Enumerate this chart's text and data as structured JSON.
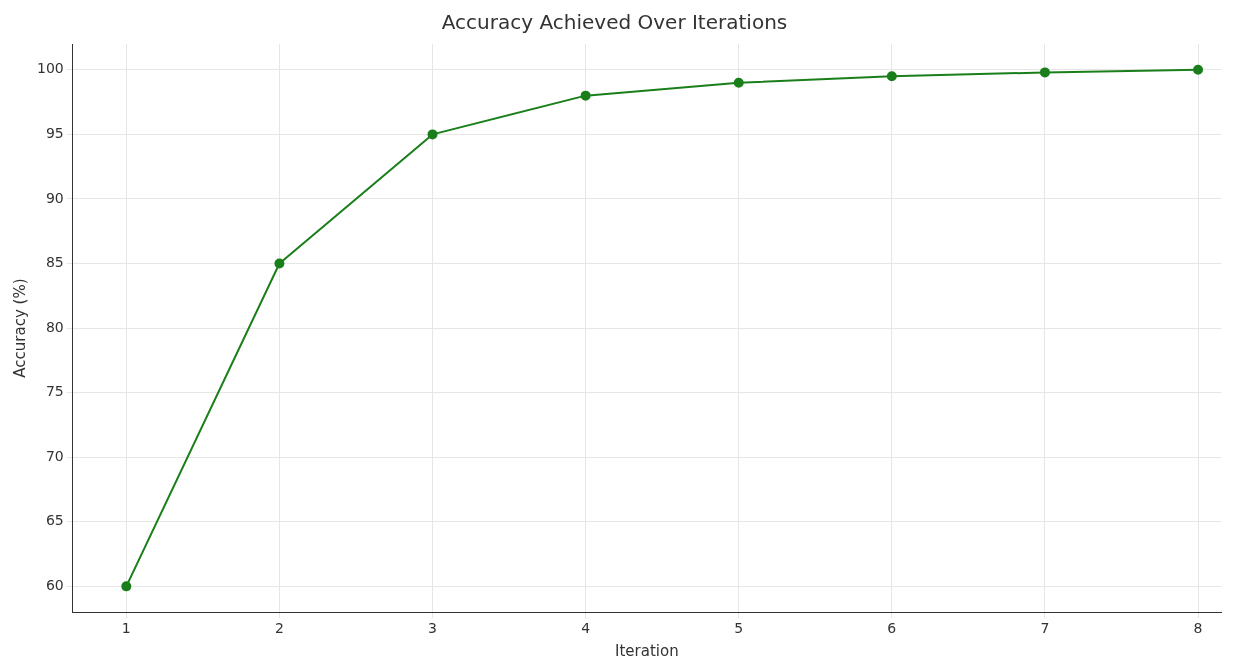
{
  "chart_data": {
    "type": "line",
    "title": "Accuracy Achieved Over Iterations",
    "xlabel": "Iteration",
    "ylabel": "Accuracy (%)",
    "x": [
      1,
      2,
      3,
      4,
      5,
      6,
      7,
      8
    ],
    "series": [
      {
        "color": "#1a7f1a",
        "values": [
          60,
          85,
          95,
          98,
          99,
          99.5,
          99.8,
          100
        ]
      }
    ],
    "xlim": [
      0.65,
      8.15
    ],
    "xticks": [
      1,
      2,
      3,
      4,
      5,
      6,
      7,
      8
    ],
    "ylim": [
      58,
      102
    ],
    "yticks": [
      60,
      65,
      70,
      75,
      80,
      85,
      90,
      95,
      100
    ],
    "grid": true,
    "legend": false,
    "marker": "circle",
    "line_style": "solid"
  }
}
